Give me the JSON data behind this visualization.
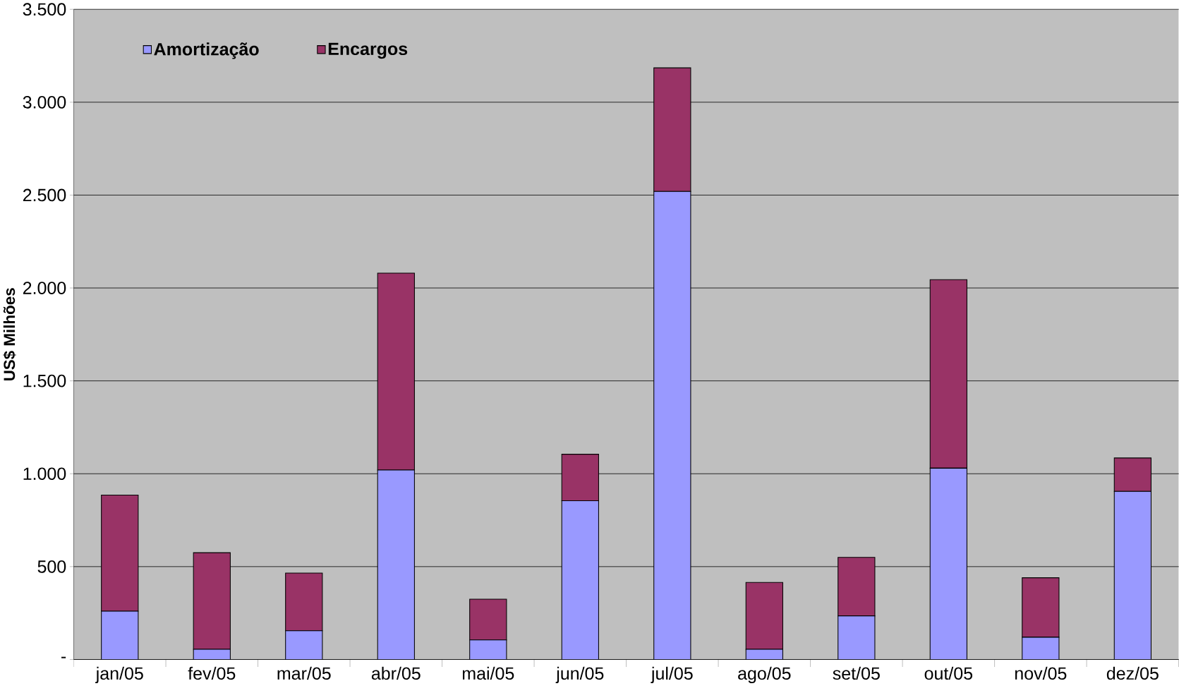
{
  "chart_data": {
    "type": "bar",
    "stacked": true,
    "ylabel": "US$ Milhões",
    "categories": [
      "jan/05",
      "fev/05",
      "mar/05",
      "abr/05",
      "mai/05",
      "jun/05",
      "jul/05",
      "ago/05",
      "set/05",
      "out/05",
      "nov/05",
      "dez/05"
    ],
    "series": [
      {
        "name": "Amortização",
        "color": "#9999ff",
        "values": [
          260,
          55,
          155,
          1020,
          105,
          855,
          2520,
          55,
          235,
          1030,
          120,
          905
        ]
      },
      {
        "name": "Encargos",
        "color": "#993366",
        "values": [
          625,
          520,
          310,
          1060,
          220,
          250,
          665,
          360,
          315,
          1015,
          320,
          180
        ]
      }
    ],
    "ylim": [
      0,
      3500
    ],
    "yticks": [
      {
        "value": 0,
        "label": "-"
      },
      {
        "value": 500,
        "label": "500"
      },
      {
        "value": 1000,
        "label": "1.000"
      },
      {
        "value": 1500,
        "label": "1.500"
      },
      {
        "value": 2000,
        "label": "2.000"
      },
      {
        "value": 2500,
        "label": "2.500"
      },
      {
        "value": 3000,
        "label": "3.000"
      },
      {
        "value": 3500,
        "label": "3.500"
      }
    ],
    "grid": "y",
    "legend": "top left"
  }
}
